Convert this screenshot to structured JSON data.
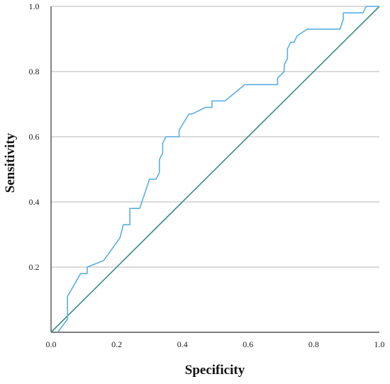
{
  "chart_data": {
    "type": "line",
    "title": "",
    "xlabel": "Specificity",
    "ylabel": "Sensitivity",
    "xlim": [
      0,
      1
    ],
    "ylim": [
      0,
      1
    ],
    "x_ticks": [
      "0.0",
      "0.2",
      "0.4",
      "0.6",
      "0.8",
      "1.0"
    ],
    "y_ticks": [
      "0.2",
      "0.4",
      "0.6",
      "0.8",
      "1.0"
    ],
    "grid": "horizontal",
    "legend": "none",
    "colors": {
      "roc": "#5aaee3",
      "reference": "#3a8a88",
      "grid": "#c4c4c4",
      "axis": "#333333"
    },
    "series": [
      {
        "x": [
          0.02,
          0.05,
          0.05,
          0.09,
          0.11,
          0.11,
          0.16,
          0.21,
          0.22,
          0.24,
          0.24,
          0.27,
          0.29,
          0.3,
          0.32,
          0.33,
          0.33,
          0.34,
          0.34,
          0.35,
          0.36,
          0.37,
          0.37,
          0.39,
          0.39,
          0.42,
          0.43,
          0.47,
          0.48,
          0.49,
          0.49,
          0.53,
          0.59,
          0.68,
          0.69,
          0.69,
          0.71,
          0.71,
          0.72,
          0.72,
          0.73,
          0.74,
          0.75,
          0.78,
          0.88,
          0.89,
          0.89,
          0.95,
          0.96,
          1.0
        ],
        "y": [
          0.0,
          0.04,
          0.11,
          0.18,
          0.18,
          0.2,
          0.22,
          0.29,
          0.33,
          0.33,
          0.38,
          0.38,
          0.44,
          0.47,
          0.47,
          0.49,
          0.53,
          0.55,
          0.58,
          0.6,
          0.6,
          0.6,
          0.6,
          0.6,
          0.62,
          0.67,
          0.67,
          0.69,
          0.69,
          0.69,
          0.71,
          0.71,
          0.76,
          0.76,
          0.76,
          0.78,
          0.8,
          0.82,
          0.84,
          0.87,
          0.89,
          0.89,
          0.91,
          0.93,
          0.93,
          0.96,
          0.98,
          0.98,
          1.0,
          1.0
        ]
      },
      {
        "x": [
          0,
          1
        ],
        "y": [
          0,
          1
        ]
      }
    ]
  }
}
